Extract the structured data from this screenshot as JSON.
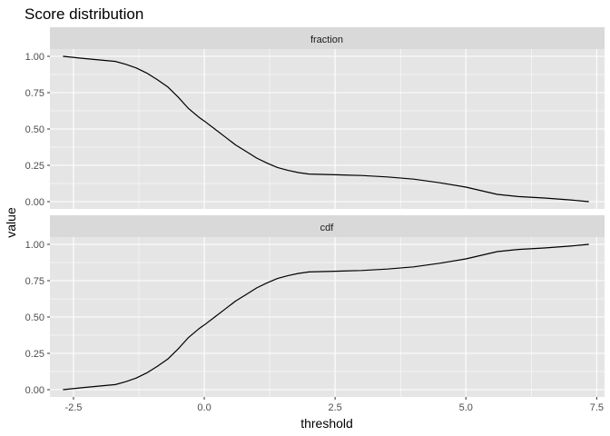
{
  "chart_data": {
    "type": "line",
    "title": "Score distribution",
    "xlabel": "threshold",
    "ylabel": "value",
    "xlim": [
      -2.95,
      7.65
    ],
    "ylim": [
      -0.05,
      1.05
    ],
    "x_ticks": [
      -2.5,
      0.0,
      2.5,
      5.0,
      7.5
    ],
    "x_tick_labels": [
      "-2.5",
      "0.0",
      "2.5",
      "5.0",
      "7.5"
    ],
    "y_ticks": [
      0.0,
      0.25,
      0.5,
      0.75,
      1.0
    ],
    "y_tick_labels": [
      "0.00",
      "0.25",
      "0.50",
      "0.75",
      "1.00"
    ],
    "grid": true,
    "facets": [
      {
        "label": "fraction",
        "x": [
          -2.7,
          -2.3,
          -2.0,
          -1.7,
          -1.5,
          -1.3,
          -1.1,
          -0.9,
          -0.7,
          -0.5,
          -0.3,
          -0.1,
          0.0,
          0.2,
          0.4,
          0.6,
          0.8,
          1.0,
          1.2,
          1.4,
          1.6,
          1.8,
          2.0,
          2.5,
          3.0,
          3.5,
          4.0,
          4.5,
          5.0,
          5.3,
          5.6,
          6.0,
          6.5,
          7.0,
          7.35
        ],
        "y": [
          1.0,
          0.985,
          0.975,
          0.965,
          0.945,
          0.92,
          0.885,
          0.84,
          0.79,
          0.72,
          0.64,
          0.58,
          0.555,
          0.5,
          0.445,
          0.39,
          0.345,
          0.3,
          0.265,
          0.235,
          0.215,
          0.2,
          0.19,
          0.185,
          0.18,
          0.17,
          0.155,
          0.13,
          0.1,
          0.075,
          0.05,
          0.035,
          0.025,
          0.012,
          0.0
        ]
      },
      {
        "label": "cdf",
        "x": [
          -2.7,
          -2.3,
          -2.0,
          -1.7,
          -1.5,
          -1.3,
          -1.1,
          -0.9,
          -0.7,
          -0.5,
          -0.3,
          -0.1,
          0.0,
          0.2,
          0.4,
          0.6,
          0.8,
          1.0,
          1.2,
          1.4,
          1.6,
          1.8,
          2.0,
          2.5,
          3.0,
          3.5,
          4.0,
          4.5,
          5.0,
          5.3,
          5.6,
          6.0,
          6.5,
          7.0,
          7.35
        ],
        "y": [
          0.0,
          0.015,
          0.025,
          0.035,
          0.055,
          0.08,
          0.115,
          0.16,
          0.21,
          0.28,
          0.36,
          0.42,
          0.445,
          0.5,
          0.555,
          0.61,
          0.655,
          0.7,
          0.735,
          0.765,
          0.785,
          0.8,
          0.81,
          0.815,
          0.82,
          0.83,
          0.845,
          0.87,
          0.9,
          0.925,
          0.95,
          0.965,
          0.975,
          0.988,
          1.0
        ]
      }
    ]
  },
  "colors": {
    "panel_background": "#e5e5e5",
    "strip_background": "#d9d9d9",
    "grid_major": "#ffffff",
    "line": "#000000",
    "tick_text": "#4d4d4d"
  }
}
